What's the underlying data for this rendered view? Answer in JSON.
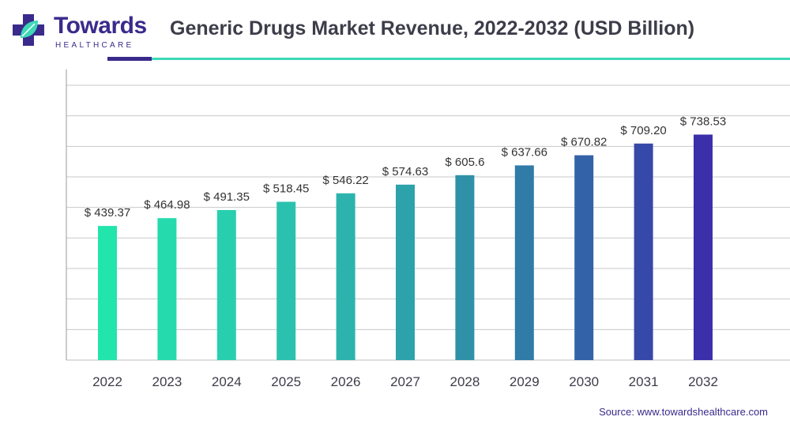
{
  "logo": {
    "brand": "Towards",
    "sub": "HEALTHCARE",
    "icon": "medical-cross-leaf-logo"
  },
  "source": "Source: www.towardshealthcare.com",
  "colors": {
    "bars": [
      "#22e5ac",
      "#25dbae",
      "#28cfae",
      "#2ac2ae",
      "#2cb3ae",
      "#2ea2ab",
      "#2f91a8",
      "#307ba7",
      "#3362a8",
      "#3649a9",
      "#3b2faa"
    ],
    "grid": "#c9c9cc",
    "text": "#333333",
    "accent_purple": "#3a2a8c",
    "accent_teal": "#3dd8b6"
  },
  "chart_data": {
    "type": "bar",
    "title": "Generic Drugs Market Revenue, 2022-2032 (USD Billion)",
    "categories": [
      "2022",
      "2023",
      "2024",
      "2025",
      "2026",
      "2027",
      "2028",
      "2029",
      "2030",
      "2031",
      "2032"
    ],
    "values": [
      439.37,
      464.98,
      491.35,
      518.45,
      546.22,
      574.63,
      605.6,
      637.66,
      670.82,
      709.2,
      738.53
    ],
    "labels": [
      "$ 439.37",
      "$ 464.98",
      "$ 491.35",
      "$ 518.45",
      "$ 546.22",
      "$ 574.63",
      "$ 605.6",
      "$ 637.66",
      "$ 670.82",
      "$ 709.20",
      "$ 738.53"
    ],
    "xlabel": "",
    "ylabel": "",
    "ylim": [
      0,
      900
    ],
    "grid": true,
    "legend": "none"
  }
}
